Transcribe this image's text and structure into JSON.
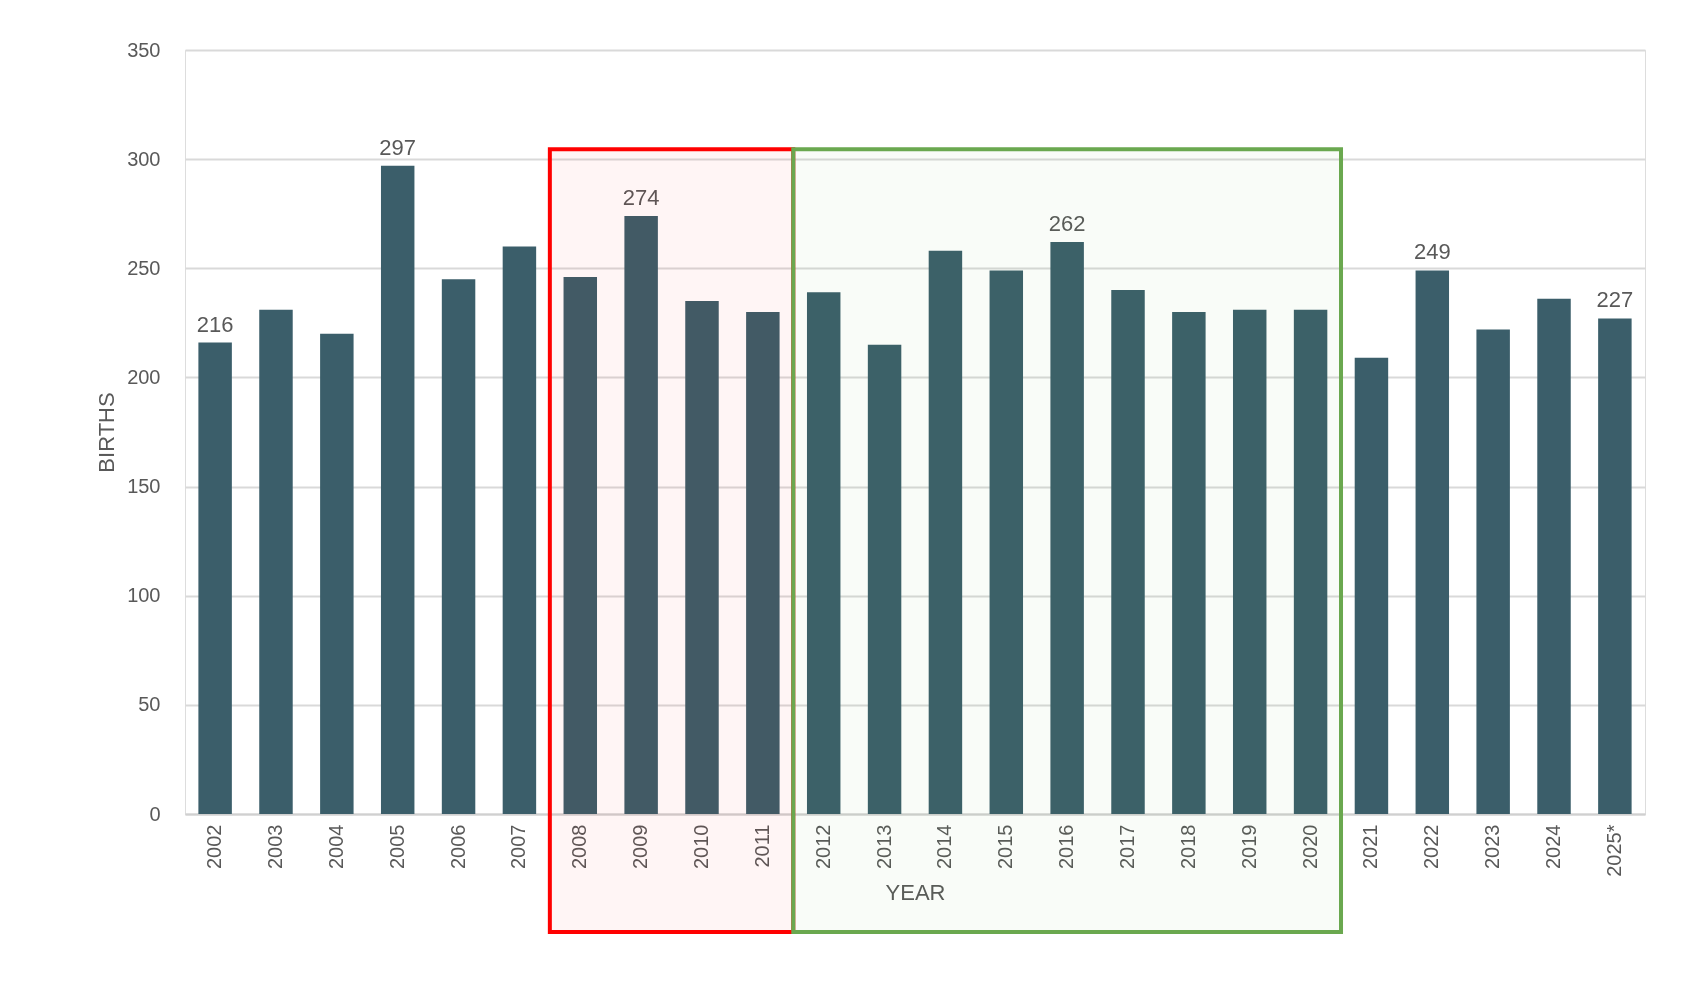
{
  "chart_data": {
    "type": "bar",
    "xlabel": "YEAR",
    "ylabel": "BIRTHS",
    "categories": [
      "2002",
      "2003",
      "2004",
      "2005",
      "2006",
      "2007",
      "2008",
      "2009",
      "2010",
      "2011",
      "2012",
      "2013",
      "2014",
      "2015",
      "2016",
      "2017",
      "2018",
      "2019",
      "2020",
      "2021",
      "2022",
      "2023",
      "2024",
      "2025*"
    ],
    "values": [
      216,
      231,
      220,
      297,
      245,
      260,
      246,
      274,
      235,
      230,
      239,
      215,
      258,
      249,
      262,
      240,
      230,
      231,
      231,
      209,
      249,
      222,
      236,
      227
    ],
    "value_labels": [
      "216",
      null,
      null,
      "297",
      null,
      null,
      null,
      "274",
      null,
      null,
      null,
      null,
      null,
      null,
      "262",
      null,
      null,
      null,
      null,
      null,
      "249",
      null,
      null,
      "227"
    ],
    "color": "#3b5e6a",
    "ylim": [
      0,
      350
    ],
    "yticks": [
      0,
      50,
      100,
      150,
      200,
      250,
      300,
      350
    ],
    "grid": "y",
    "bands": [
      {
        "axis": "x",
        "from": "2008",
        "to": "2011",
        "color": "#ff0000"
      },
      {
        "axis": "x",
        "from": "2012",
        "to": "2020",
        "color": "#6aa84f"
      }
    ]
  }
}
